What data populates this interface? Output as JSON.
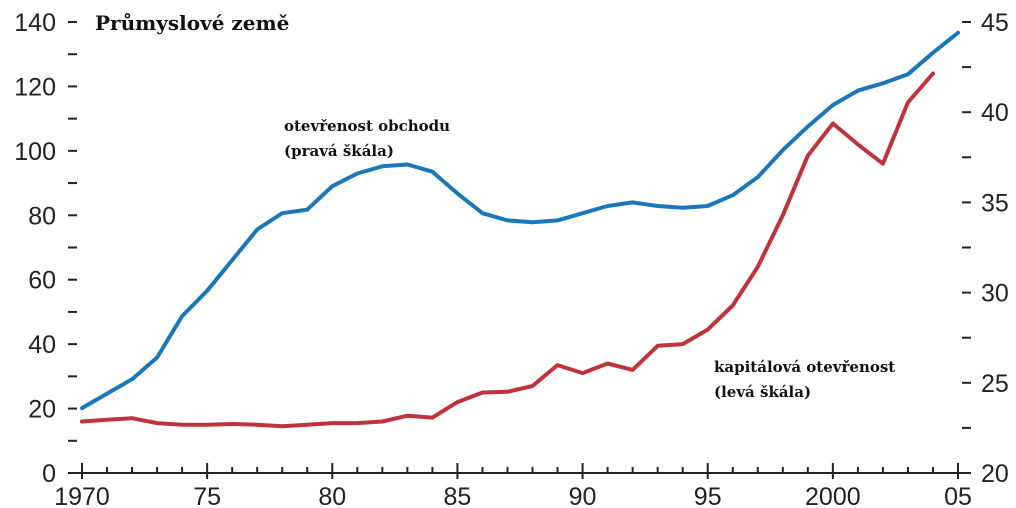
{
  "chart_data": {
    "type": "line",
    "title": "Průmyslové země",
    "x_ticks": [
      "1970",
      "75",
      "80",
      "85",
      "90",
      "95",
      "2000",
      "05"
    ],
    "x_range": [
      1970,
      2005
    ],
    "y_left": {
      "range": [
        0,
        140
      ],
      "ticks": [
        "0",
        "20",
        "40",
        "60",
        "80",
        "100",
        "120",
        "140"
      ]
    },
    "y_right": {
      "range": [
        20,
        45
      ],
      "ticks": [
        "20",
        "25",
        "30",
        "35",
        "40",
        "45"
      ]
    },
    "series": [
      {
        "name": "otevřenost obchodu",
        "axis": "right",
        "color": "#1a78b8",
        "label_lines": [
          "otevřenost obchodu",
          "(pravá škála)"
        ],
        "x": [
          1970,
          1971,
          1972,
          1973,
          1974,
          1975,
          1976,
          1977,
          1978,
          1979,
          1980,
          1981,
          1982,
          1983,
          1984,
          1985,
          1986,
          1987,
          1988,
          1989,
          1990,
          1991,
          1992,
          1993,
          1994,
          1995,
          1996,
          1997,
          1998,
          1999,
          2000,
          2001,
          2002,
          2003,
          2004,
          2005
        ],
        "values": [
          23.6,
          24.4,
          25.2,
          26.4,
          28.7,
          30.1,
          31.8,
          33.5,
          34.4,
          34.6,
          35.9,
          36.6,
          37.0,
          37.1,
          36.7,
          35.5,
          34.4,
          34.0,
          33.9,
          34.0,
          34.4,
          34.8,
          35.0,
          34.8,
          34.7,
          34.8,
          35.4,
          36.4,
          37.9,
          39.2,
          40.4,
          41.2,
          41.6,
          42.1,
          43.3,
          44.4
        ]
      },
      {
        "name": "kapitálová otevřenost",
        "axis": "left",
        "color": "#c0333c",
        "label_lines": [
          "kapitálová otevřenost",
          "(levá škála)"
        ],
        "x": [
          1970,
          1971,
          1972,
          1973,
          1974,
          1975,
          1976,
          1977,
          1978,
          1979,
          1980,
          1981,
          1982,
          1983,
          1984,
          1985,
          1986,
          1987,
          1988,
          1989,
          1990,
          1991,
          1992,
          1993,
          1994,
          1995,
          1996,
          1997,
          1998,
          1999,
          2000,
          2001,
          2002,
          2003,
          2004
        ],
        "values": [
          16,
          16.5,
          17,
          15.5,
          15,
          15,
          15.2,
          15,
          14.5,
          15,
          15.5,
          15.5,
          16,
          17.8,
          17.2,
          22,
          25,
          25.2,
          27,
          33.5,
          31,
          34,
          32,
          39.5,
          40,
          44.5,
          52,
          64,
          80,
          98.5,
          108.5,
          102,
          96,
          115,
          124
        ]
      }
    ],
    "grid": false,
    "legend": "none"
  }
}
